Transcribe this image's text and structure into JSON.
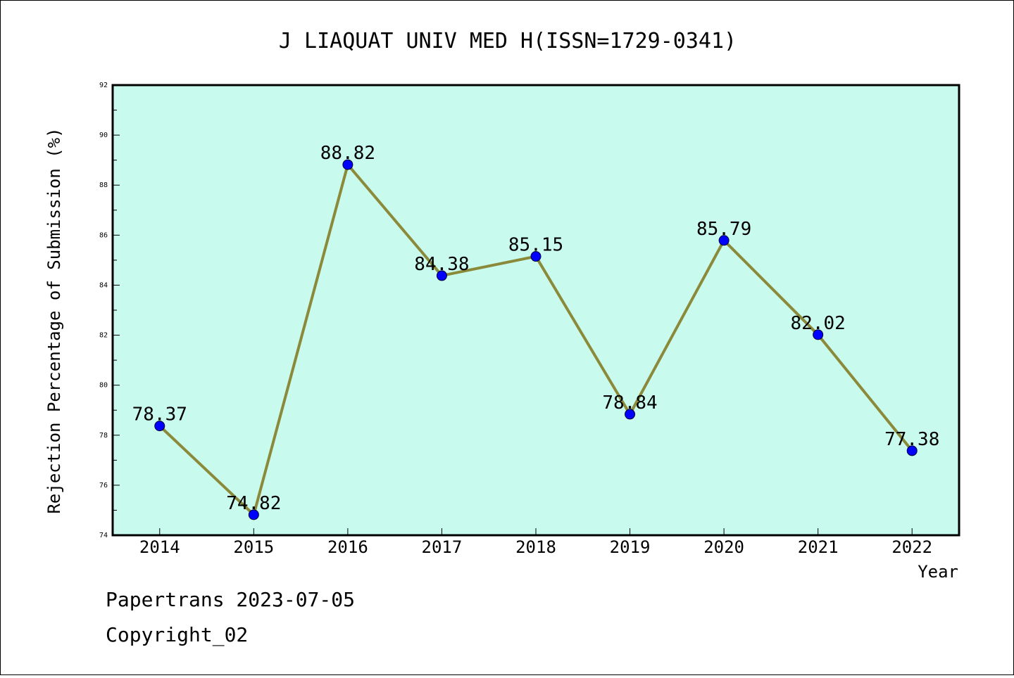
{
  "colors": {
    "plot_background": "#c8fbed",
    "line": "#8b8a3a",
    "marker": "#0000ff",
    "axis": "#000000"
  },
  "chart_data": {
    "type": "line",
    "title": "J LIAQUAT UNIV MED H(ISSN=1729-0341)",
    "xlabel": "Year",
    "ylabel": "Rejection Percentage of Submission (%)",
    "ylim": [
      74,
      92
    ],
    "yticks": [
      74,
      76,
      78,
      80,
      82,
      84,
      86,
      88,
      90,
      92
    ],
    "categories": [
      "2014",
      "2015",
      "2016",
      "2017",
      "2018",
      "2019",
      "2020",
      "2021",
      "2022"
    ],
    "values": [
      78.37,
      74.82,
      88.82,
      84.38,
      85.15,
      78.84,
      85.79,
      82.02,
      77.38
    ],
    "data_labels": [
      "78.37",
      "74.82",
      "88.82",
      "84.38",
      "85.15",
      "78.84",
      "85.79",
      "82.02",
      "77.38"
    ],
    "grid": false,
    "legend": "none"
  },
  "footer": {
    "line1": "Papertrans 2023-07-05",
    "line2": "Copyright_02"
  }
}
